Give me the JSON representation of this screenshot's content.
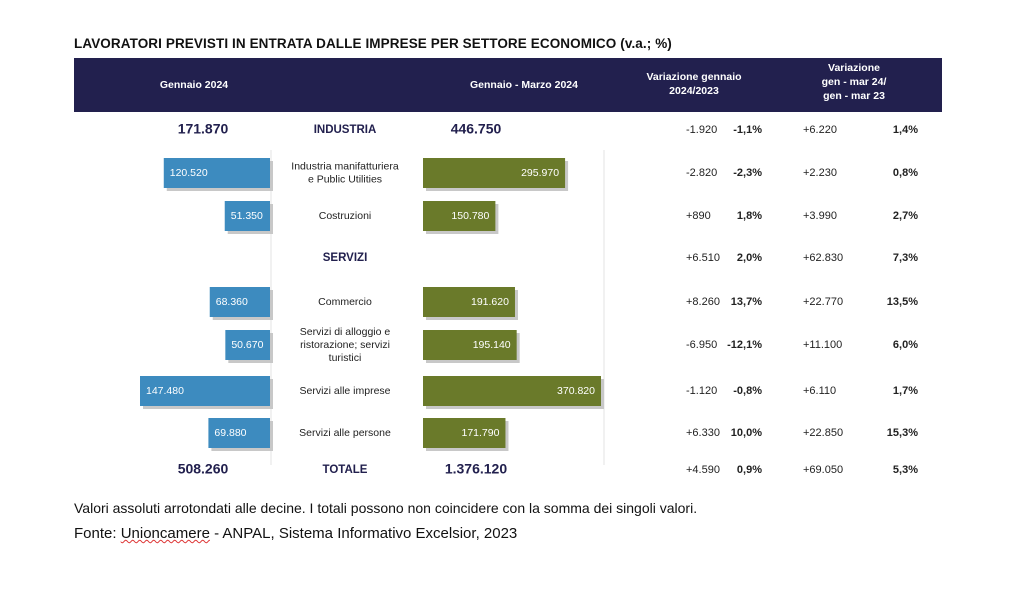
{
  "title": "LAVORATORI PREVISTI IN ENTRATA DALLE IMPRESE PER SETTORE ECONOMICO (v.a.; %)",
  "header": {
    "col_gen": "Gennaio 2024",
    "col_genmar": "Gennaio  - Marzo 2024",
    "col_var_gen_1": "Variazione gennaio",
    "col_var_gen_2": "2024/2023",
    "col_var_q_1": "Variazione",
    "col_var_q_2": "gen - mar 24/",
    "col_var_q_3": "gen - mar 23"
  },
  "colors": {
    "header_bg": "#22204e",
    "bar_left": "#3d8bbf",
    "bar_right": "#6a7a2a",
    "text_dark": "#22204e"
  },
  "chart_data": {
    "type": "bar",
    "rows": [
      {
        "label": "INDUSTRIA",
        "kind": "total",
        "gen": "171.870",
        "genmar": "446.750",
        "var_gen": "-1.920",
        "var_gen_pct": "-1,1%",
        "var_q": "+6.220",
        "var_q_pct": "1,4%"
      },
      {
        "label": "Industria manifatturiera e Public Utilities",
        "kind": "bar",
        "gen": "120.520",
        "genmar": "295.970",
        "gen_value": 120520,
        "genmar_value": 295970,
        "var_gen": "-2.820",
        "var_gen_pct": "-2,3%",
        "var_q": "+2.230",
        "var_q_pct": "0,8%"
      },
      {
        "label": "Costruzioni",
        "kind": "bar",
        "gen": "51.350",
        "genmar": "150.780",
        "gen_value": 51350,
        "genmar_value": 150780,
        "var_gen": "+890",
        "var_gen_pct": "1,8%",
        "var_q": "+3.990",
        "var_q_pct": "2,7%"
      },
      {
        "label": "SERVIZI",
        "kind": "section",
        "gen": "",
        "genmar": "",
        "var_gen": "+6.510",
        "var_gen_pct": "2,0%",
        "var_q": "+62.830",
        "var_q_pct": "7,3%"
      },
      {
        "label": "Commercio",
        "kind": "bar",
        "gen": "68.360",
        "genmar": "191.620",
        "gen_value": 68360,
        "genmar_value": 191620,
        "var_gen": "+8.260",
        "var_gen_pct": "13,7%",
        "var_q": "+22.770",
        "var_q_pct": "13,5%"
      },
      {
        "label": "Servizi di alloggio e ristorazione; servizi turistici",
        "kind": "bar",
        "gen": "50.670",
        "genmar": "195.140",
        "gen_value": 50670,
        "genmar_value": 195140,
        "var_gen": "-6.950",
        "var_gen_pct": "-12,1%",
        "var_q": "+11.100",
        "var_q_pct": "6,0%"
      },
      {
        "label": "Servizi alle imprese",
        "kind": "bar",
        "gen": "147.480",
        "genmar": "370.820",
        "gen_value": 147480,
        "genmar_value": 370820,
        "var_gen": "-1.120",
        "var_gen_pct": "-0,8%",
        "var_q": "+6.110",
        "var_q_pct": "1,7%"
      },
      {
        "label": "Servizi alle persone",
        "kind": "bar",
        "gen": "69.880",
        "genmar": "171.790",
        "gen_value": 69880,
        "genmar_value": 171790,
        "var_gen": "+6.330",
        "var_gen_pct": "10,0%",
        "var_q": "+22.850",
        "var_q_pct": "15,3%"
      },
      {
        "label": "TOTALE",
        "kind": "total",
        "gen": "508.260",
        "genmar": "1.376.120",
        "var_gen": "+4.590",
        "var_gen_pct": "0,9%",
        "var_q": "+69.050",
        "var_q_pct": "5,3%"
      }
    ]
  },
  "footer": {
    "note": "Valori assoluti arrotondati alle decine. I totali possono non coincidere con la somma dei singoli valori.",
    "source_prefix": "Fonte: ",
    "source_org": "Unioncamere",
    "source_rest": " - ANPAL, Sistema Informativo Excelsior, 2023"
  }
}
